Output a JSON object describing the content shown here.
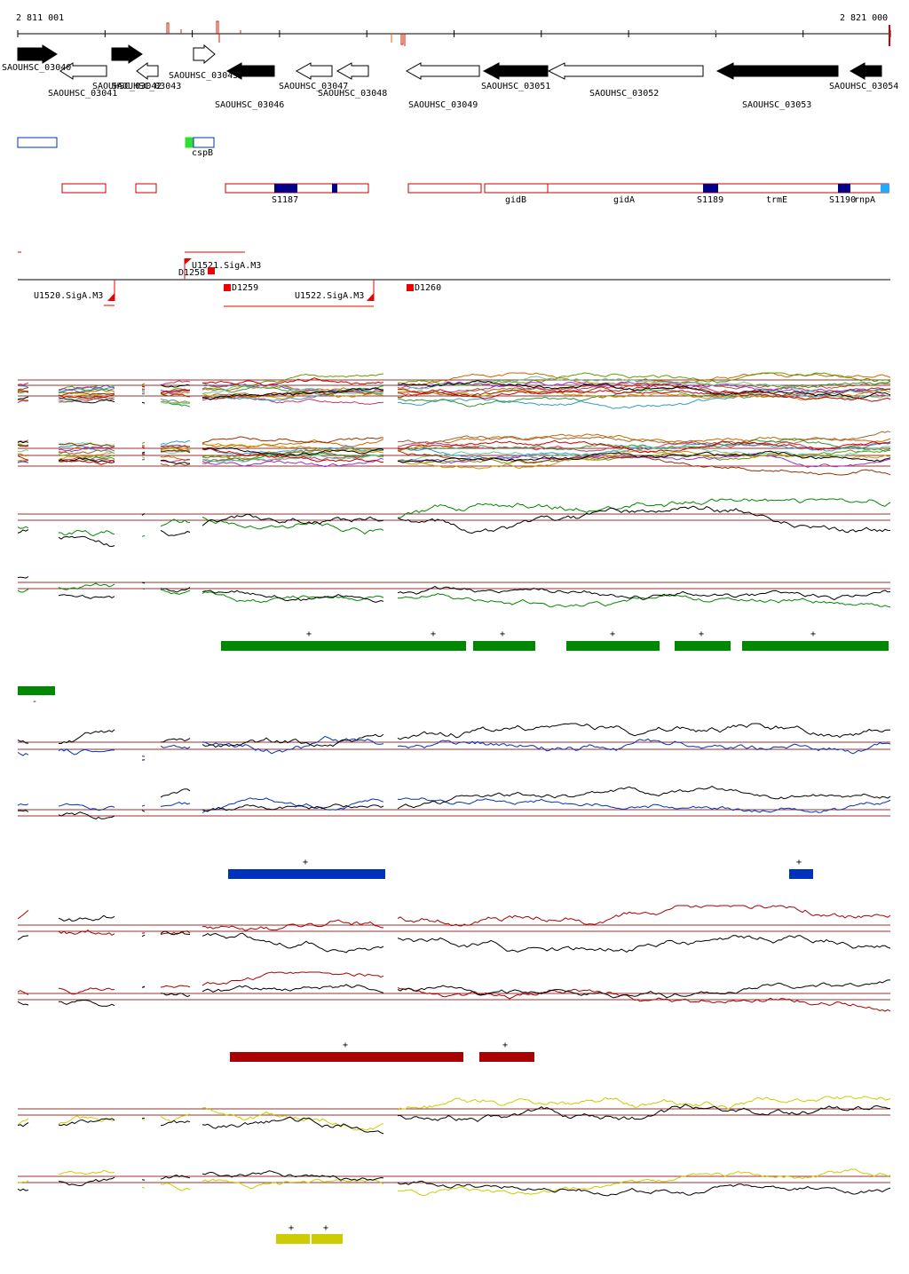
{
  "axis": {
    "start_label": "2 811 001",
    "end_label": "2 821 000"
  },
  "genes": [
    {
      "label": "SAOUHSC_03040",
      "strand": "+",
      "filled": true
    },
    {
      "label": "SAOUHSC_03041",
      "strand": "-",
      "filled": false
    },
    {
      "label": "SAOUHSC_03042",
      "strand": "+",
      "filled": true
    },
    {
      "label": "SAOUHSC_03043",
      "strand": "-",
      "filled": false
    },
    {
      "label": "SAOUHSC_03045",
      "strand": "+",
      "filled": false
    },
    {
      "label": "SAOUHSC_03046",
      "strand": "-",
      "filled": true
    },
    {
      "label": "SAOUHSC_03047",
      "strand": "-",
      "filled": false
    },
    {
      "label": "SAOUHSC_03048",
      "strand": "-",
      "filled": false
    },
    {
      "label": "SAOUHSC_03049",
      "strand": "-",
      "filled": false
    },
    {
      "label": "SAOUHSC_03051",
      "strand": "-",
      "filled": true
    },
    {
      "label": "SAOUHSC_03052",
      "strand": "-",
      "filled": false
    },
    {
      "label": "SAOUHSC_03053",
      "strand": "-",
      "filled": true
    },
    {
      "label": "SAOUHSC_03054",
      "strand": "-",
      "filled": true
    }
  ],
  "ncrna": {
    "label": "cspB"
  },
  "transcript_labels": [
    "S1187",
    "gidB",
    "gidA",
    "S1189",
    "trmE",
    "S1190",
    "rnpA"
  ],
  "promoters": [
    "U1521.SigA.M3",
    "D1258",
    "U1520.SigA.M3",
    "D1259",
    "U1522.SigA.M3",
    "D1260"
  ],
  "colors": {
    "green": "#008800",
    "blue": "#0033bb",
    "red": "#aa0000",
    "yellow": "#cccc00",
    "gene_fill": "#000000",
    "transcript_box": "#cc0000",
    "promoter": "#ee0000",
    "navy": "#000088"
  },
  "segments": {
    "green": [
      "+",
      "+",
      "+",
      "+",
      "+",
      "+",
      "-"
    ],
    "blue": [
      "+",
      "+"
    ],
    "red": [
      "+",
      "+"
    ],
    "yellow": [
      "+",
      "+"
    ]
  }
}
